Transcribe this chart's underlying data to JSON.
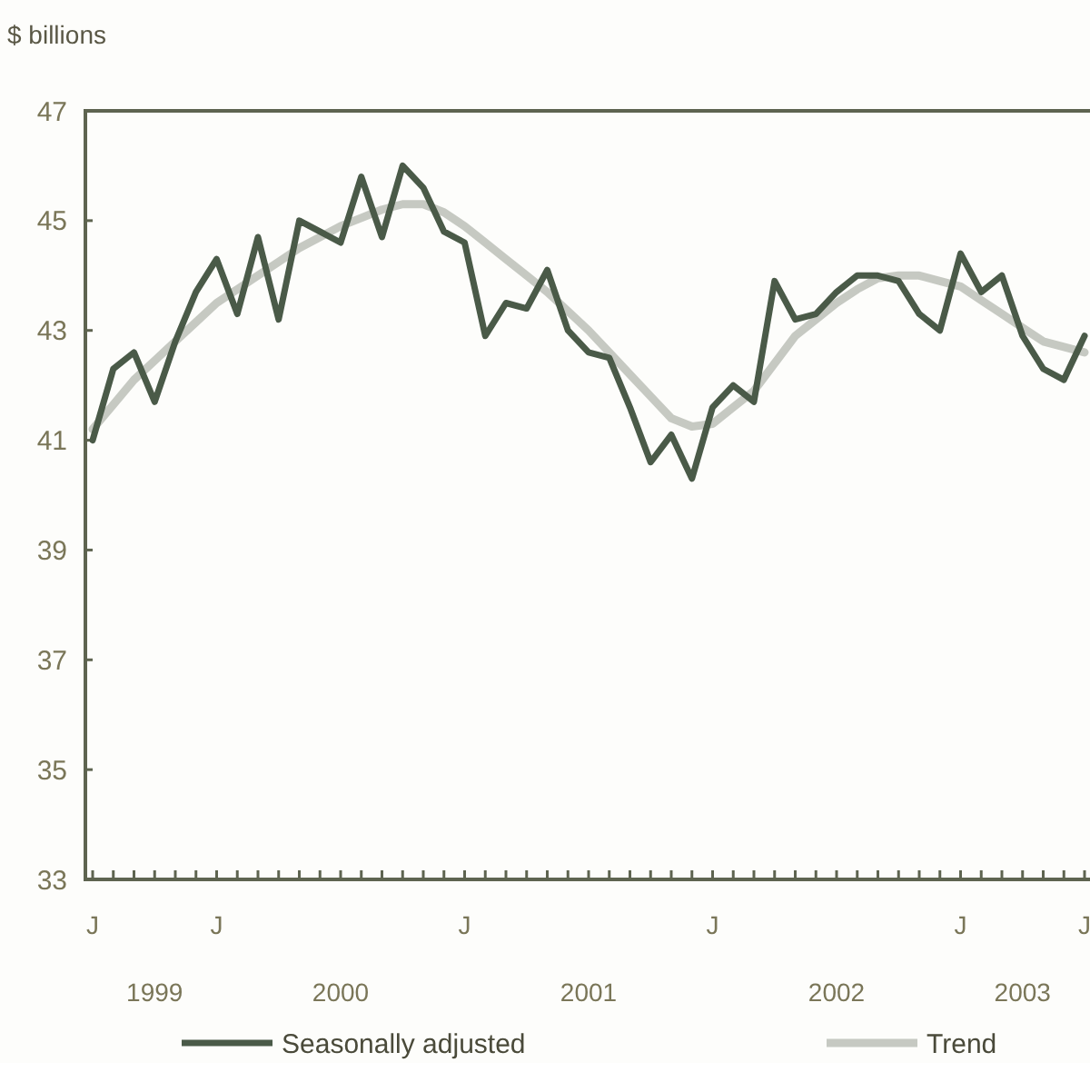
{
  "chart_data": {
    "type": "line",
    "ylabel": "$ billions",
    "categories": [
      "J",
      null,
      null,
      null,
      null,
      null,
      "J",
      null,
      null,
      null,
      null,
      null,
      null,
      null,
      null,
      null,
      null,
      null,
      "J",
      null,
      null,
      null,
      null,
      null,
      null,
      null,
      null,
      null,
      null,
      null,
      "J",
      null,
      null,
      null,
      null,
      null,
      null,
      null,
      null,
      null,
      null,
      null,
      "J",
      null,
      null,
      null,
      null,
      null,
      "J"
    ],
    "series": [
      {
        "name": "Seasonally adjusted",
        "color": "#4a5a48",
        "values": [
          41.0,
          42.3,
          42.6,
          41.7,
          42.8,
          43.7,
          44.3,
          43.3,
          44.7,
          43.2,
          45.0,
          44.8,
          44.6,
          45.8,
          44.7,
          46.0,
          45.6,
          44.8,
          44.6,
          42.9,
          43.5,
          43.4,
          44.1,
          43.0,
          42.6,
          42.5,
          41.6,
          40.6,
          41.1,
          40.3,
          41.6,
          42.0,
          41.7,
          43.9,
          43.2,
          43.3,
          43.7,
          44.0,
          44.0,
          43.9,
          43.3,
          43.0,
          44.4,
          43.7,
          44.0,
          42.9,
          42.3,
          42.1,
          42.9
        ]
      },
      {
        "name": "Trend",
        "color": "#c6c9c2",
        "values": [
          41.2,
          41.65,
          42.1,
          42.45,
          42.8,
          43.15,
          43.5,
          43.75,
          44.0,
          44.25,
          44.5,
          44.7,
          44.9,
          45.05,
          45.2,
          45.3,
          45.3,
          45.15,
          44.9,
          44.6,
          44.3,
          44.0,
          43.7,
          43.35,
          43.0,
          42.6,
          42.2,
          41.8,
          41.4,
          41.25,
          41.3,
          41.6,
          41.9,
          42.4,
          42.9,
          43.2,
          43.5,
          43.75,
          43.95,
          44.0,
          44.0,
          43.9,
          43.8,
          43.55,
          43.3,
          43.05,
          42.8,
          42.7,
          42.6
        ]
      }
    ],
    "annotations": [
      "1999",
      "2000",
      "2001",
      "2002",
      "2003"
    ],
    "ylim": [
      33,
      47
    ],
    "yticks": [
      33,
      35,
      37,
      39,
      41,
      43,
      45,
      47
    ],
    "grid": false,
    "legend": "bottom",
    "marker": "none",
    "line_style": "solid"
  }
}
